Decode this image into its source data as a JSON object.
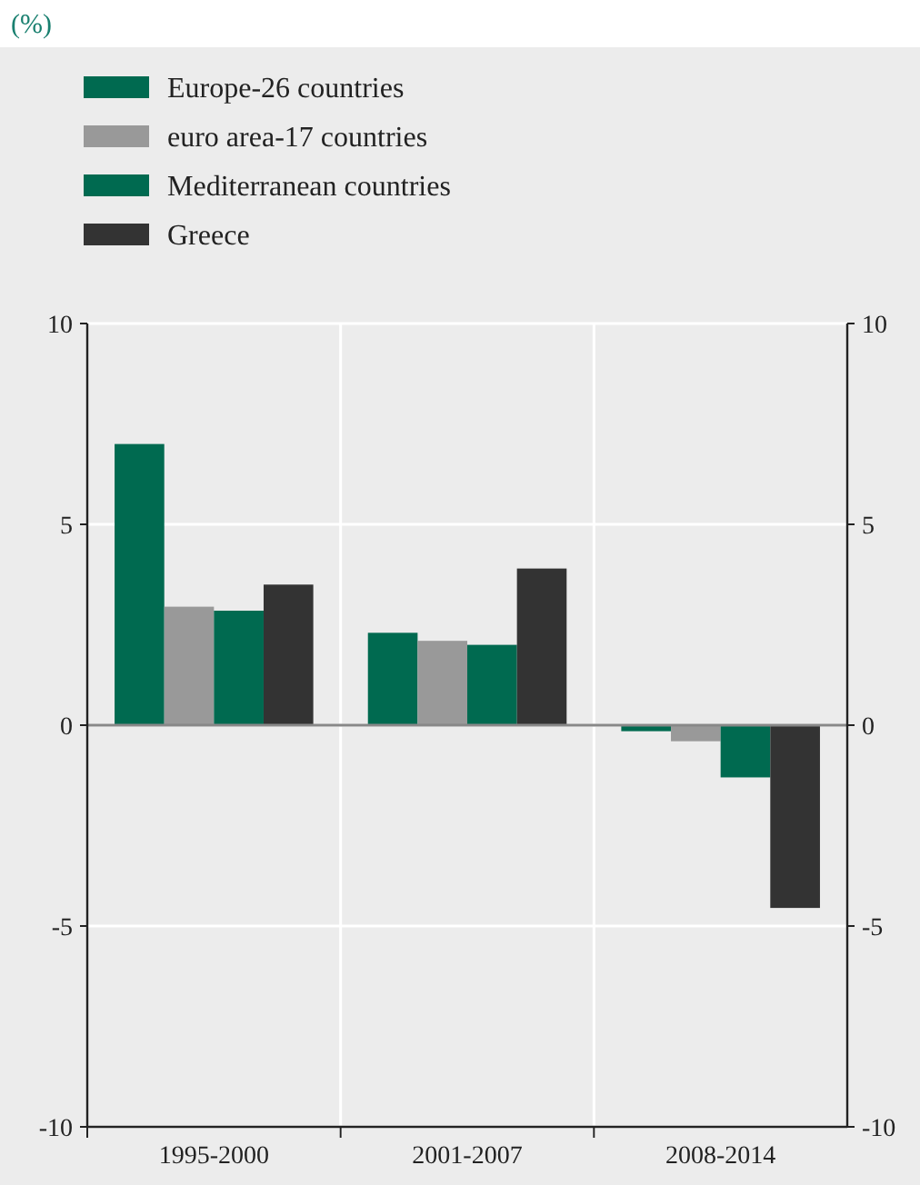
{
  "chart_data": {
    "type": "bar",
    "title": "(%)",
    "categories": [
      "1995-2000",
      "2001-2007",
      "2008-2014"
    ],
    "series": [
      {
        "name": "Europe-26 countries",
        "color": "#006a50",
        "values": [
          7.0,
          2.3,
          -0.15
        ]
      },
      {
        "name": "euro area-17 countries",
        "color": "#999999",
        "values": [
          2.95,
          2.1,
          -0.4
        ]
      },
      {
        "name": "Mediterranean countries",
        "color": "#006a50",
        "values": [
          2.85,
          2.0,
          -1.3
        ]
      },
      {
        "name": "Greece",
        "color": "#333333",
        "values": [
          3.5,
          3.9,
          -4.55
        ]
      }
    ],
    "ylim": [
      -10,
      10
    ],
    "yticks": [
      -10,
      -5,
      0,
      5,
      10
    ],
    "y2lim": [
      -10,
      10
    ],
    "y2ticks": [
      -10,
      -5,
      0,
      5,
      10
    ],
    "grid": "y",
    "legend": "top left"
  }
}
